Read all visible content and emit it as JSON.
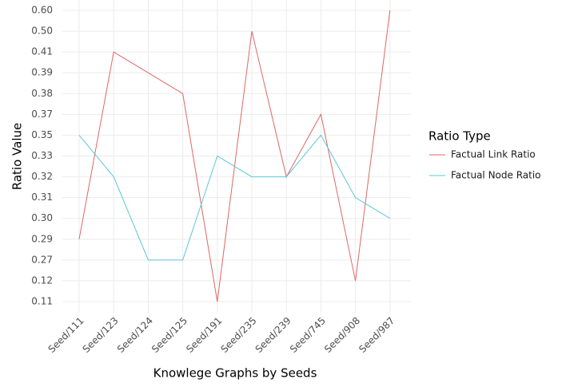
{
  "chart_data": {
    "type": "line",
    "x_label": "Knowlege Graphs by Seeds",
    "y_label": "Ratio Value",
    "categories": [
      "Seed/111",
      "Seed/123",
      "Seed/124",
      "Seed/125",
      "Seed/191",
      "Seed/235",
      "Seed/239",
      "Seed/745",
      "Seed/908",
      "Seed/987"
    ],
    "y_scale": "categorical",
    "yticks": [
      {
        "value": 0.11,
        "label": "0.11"
      },
      {
        "value": 0.12,
        "label": "0.12"
      },
      {
        "value": 0.27,
        "label": "0.27"
      },
      {
        "value": 0.29,
        "label": "0.29"
      },
      {
        "value": 0.3,
        "label": "0.30"
      },
      {
        "value": 0.31,
        "label": "0.31"
      },
      {
        "value": 0.32,
        "label": "0.32"
      },
      {
        "value": 0.33,
        "label": "0.33"
      },
      {
        "value": 0.35,
        "label": "0.35"
      },
      {
        "value": 0.37,
        "label": "0.37"
      },
      {
        "value": 0.38,
        "label": "0.38"
      },
      {
        "value": 0.39,
        "label": "0.39"
      },
      {
        "value": 0.41,
        "label": "0.41"
      },
      {
        "value": 0.5,
        "label": "0.50"
      },
      {
        "value": 0.6,
        "label": "0.60"
      }
    ],
    "grid": true,
    "legend_title": "Ratio Type",
    "legend_position": "right",
    "series": [
      {
        "name": "Factual Link Ratio",
        "color": "#e06666",
        "values": [
          0.29,
          0.41,
          0.39,
          0.38,
          0.11,
          0.5,
          0.32,
          0.37,
          0.12,
          0.6
        ]
      },
      {
        "name": "Factual Node Ratio",
        "color": "#5bc8d6",
        "values": [
          0.35,
          0.32,
          0.27,
          0.27,
          0.33,
          0.32,
          0.32,
          0.35,
          0.31,
          0.3
        ]
      }
    ]
  }
}
